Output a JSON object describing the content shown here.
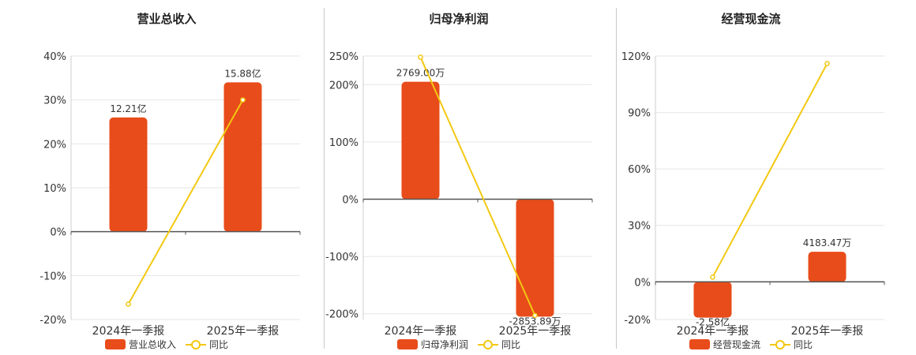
{
  "colors": {
    "bar": "#e84c1a",
    "line": "#f2c811"
  },
  "chart_data": [
    {
      "type": "bar",
      "title": "营业总收入",
      "categories": [
        "2024年一季报",
        "2025年一季报"
      ],
      "series": [
        {
          "name": "营业总收入",
          "values": [
            26,
            34
          ],
          "labels": [
            "12.21亿",
            "15.88亿"
          ]
        },
        {
          "name": "同比",
          "type": "line",
          "values": [
            -16.5,
            30
          ]
        }
      ],
      "ylim": [
        -20,
        40
      ],
      "yticks": [
        40,
        30,
        20,
        10,
        0,
        -10,
        -20
      ],
      "ytick_labels": [
        "40%",
        "30%",
        "20%",
        "10%",
        "0%",
        "-10%",
        "-20%"
      ],
      "grid": true,
      "legend": "bottom"
    },
    {
      "type": "bar",
      "title": "归母净利润",
      "categories": [
        "2024年一季报",
        "2025年一季报"
      ],
      "series": [
        {
          "name": "归母净利润",
          "values": [
            205,
            -205
          ],
          "labels": [
            "2769.00万",
            "-2853.89万"
          ]
        },
        {
          "name": "同比",
          "type": "line",
          "values": [
            248,
            -203
          ]
        }
      ],
      "ylim": [
        -210,
        250
      ],
      "yticks": [
        250,
        200,
        100,
        0,
        -100,
        -200
      ],
      "ytick_labels": [
        "250%",
        "200%",
        "100%",
        "0%",
        "-100%",
        "-200%"
      ],
      "grid": true,
      "legend": "bottom"
    },
    {
      "type": "bar",
      "title": "经营现金流",
      "categories": [
        "2024年一季报",
        "2025年一季报"
      ],
      "series": [
        {
          "name": "经营现金流",
          "values": [
            -19,
            16
          ],
          "labels": [
            "-2.58亿",
            "4183.47万"
          ]
        },
        {
          "name": "同比",
          "type": "line",
          "values": [
            2.5,
            116
          ]
        }
      ],
      "ylim": [
        -20,
        120
      ],
      "yticks": [
        120,
        90,
        60,
        30,
        0,
        -20
      ],
      "ytick_labels": [
        "120%",
        "90%",
        "60%",
        "30%",
        "0%",
        "-20%"
      ],
      "grid": true,
      "legend": "bottom"
    }
  ]
}
